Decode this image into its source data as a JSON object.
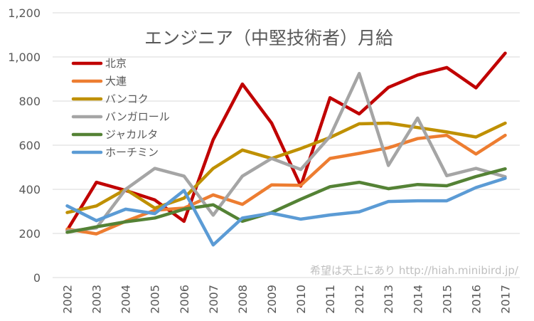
{
  "chart_data": {
    "type": "line",
    "title": "エンジニア（中堅技術者）月給",
    "categories": [
      "2002",
      "2003",
      "2004",
      "2005",
      "2006",
      "2007",
      "2008",
      "2009",
      "2010",
      "2011",
      "2012",
      "2013",
      "2014",
      "2015",
      "2016",
      "2017"
    ],
    "ylim": [
      0,
      1200
    ],
    "yticks": [
      0,
      200,
      400,
      600,
      800,
      1000,
      1200
    ],
    "ytick_labels": [
      "0",
      "200",
      "400",
      "600",
      "800",
      "1,000",
      "1,200"
    ],
    "grid": true,
    "legend_position": "top-left",
    "series": [
      {
        "name": "北京",
        "color": "#c00000",
        "values": [
          215,
          432,
          395,
          352,
          255,
          625,
          877,
          700,
          415,
          815,
          742,
          862,
          918,
          952,
          860,
          1017
        ]
      },
      {
        "name": "大連",
        "color": "#ed7d31",
        "values": [
          220,
          198,
          255,
          305,
          315,
          375,
          332,
          420,
          418,
          540,
          563,
          588,
          630,
          645,
          560,
          645
        ]
      },
      {
        "name": "バンコク",
        "color": "#bf9000",
        "values": [
          295,
          325,
          400,
          315,
          360,
          495,
          578,
          540,
          585,
          635,
          697,
          700,
          680,
          660,
          637,
          700
        ]
      },
      {
        "name": "バンガロール",
        "color": "#a5a5a5",
        "values": [
          210,
          225,
          400,
          495,
          460,
          283,
          460,
          540,
          490,
          640,
          925,
          508,
          723,
          462,
          495,
          457
        ]
      },
      {
        "name": "ジャカルタ",
        "color": "#548235",
        "values": [
          205,
          230,
          253,
          270,
          310,
          330,
          255,
          295,
          355,
          412,
          432,
          403,
          422,
          416,
          458,
          493
        ]
      },
      {
        "name": "ホーチミン",
        "color": "#5b9bd5",
        "values": [
          325,
          258,
          310,
          290,
          395,
          148,
          270,
          292,
          265,
          284,
          298,
          345,
          348,
          348,
          408,
          450
        ]
      }
    ]
  },
  "watermark": "希望は天上にあり http://hiah.minibird.jp/"
}
